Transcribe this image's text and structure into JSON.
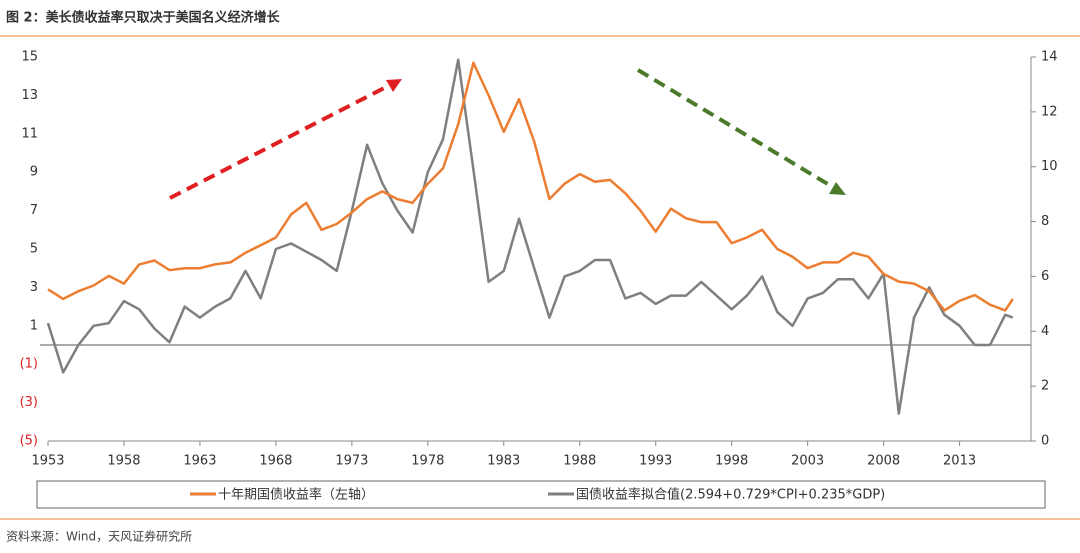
{
  "chart_data": {
    "type": "line",
    "title": "图 2：美长债收益率只取决于美国名义经济增长",
    "source": "资料来源：Wind，天风证券研究所",
    "x": [
      1953,
      1954,
      1955,
      1956,
      1957,
      1958,
      1959,
      1960,
      1961,
      1962,
      1963,
      1964,
      1965,
      1966,
      1967,
      1968,
      1969,
      1970,
      1971,
      1972,
      1973,
      1974,
      1975,
      1976,
      1977,
      1978,
      1979,
      1980,
      1981,
      1982,
      1983,
      1984,
      1985,
      1986,
      1987,
      1988,
      1989,
      1990,
      1991,
      1992,
      1993,
      1994,
      1995,
      1996,
      1997,
      1998,
      1999,
      2000,
      2001,
      2002,
      2003,
      2004,
      2005,
      2006,
      2007,
      2008,
      2009,
      2010,
      2011,
      2012,
      2013,
      2014,
      2015,
      2016,
      2016.5
    ],
    "xlim": [
      1953,
      2017.7
    ],
    "xticks": [
      1953,
      1958,
      1963,
      1968,
      1973,
      1978,
      1983,
      1988,
      1993,
      1998,
      2003,
      2008,
      2013
    ],
    "ylim": [
      -5,
      15
    ],
    "yticks": [
      15,
      13,
      11,
      9,
      7,
      5,
      3,
      1,
      {
        "value": -1,
        "label": "(1)"
      },
      {
        "value": -3,
        "label": "(3)"
      },
      {
        "value": -5,
        "label": "(5)"
      }
    ],
    "y2lim": [
      0,
      14
    ],
    "y2ticks": [
      14,
      12,
      10,
      8,
      6,
      4,
      2,
      0
    ],
    "legend": "bottom",
    "series": [
      {
        "name": "十年期国债收益率（左轴）",
        "color": "#ed7d31",
        "values": [
          2.9,
          2.4,
          2.8,
          3.1,
          3.6,
          3.2,
          4.2,
          4.4,
          3.9,
          4.0,
          4.0,
          4.2,
          4.3,
          4.8,
          5.2,
          5.6,
          6.8,
          7.4,
          6.0,
          6.3,
          6.9,
          7.6,
          8.0,
          7.6,
          7.4,
          8.4,
          9.2,
          11.5,
          14.7,
          13.0,
          11.1,
          12.8,
          10.6,
          7.6,
          8.4,
          8.9,
          8.5,
          8.6,
          7.9,
          7.0,
          5.9,
          7.1,
          6.6,
          6.4,
          6.4,
          5.3,
          5.6,
          6.0,
          5.0,
          4.6,
          4.0,
          4.3,
          4.3,
          4.8,
          4.6,
          3.7,
          3.3,
          3.2,
          2.8,
          1.8,
          2.3,
          2.6,
          2.1,
          1.8,
          2.4
        ]
      },
      {
        "name": "国债收益率拟合值(2.594+0.729*CPI+0.235*GDP)",
        "color": "#7f7f7f",
        "axis": "y2",
        "values": [
          4.3,
          2.5,
          3.5,
          4.2,
          4.3,
          5.1,
          4.8,
          4.1,
          3.6,
          4.9,
          4.5,
          4.9,
          5.2,
          6.2,
          5.2,
          7.0,
          7.2,
          6.9,
          6.6,
          6.2,
          8.4,
          10.8,
          9.4,
          8.4,
          7.6,
          9.8,
          11.0,
          13.9,
          9.9,
          5.8,
          6.2,
          8.1,
          6.3,
          4.5,
          6.0,
          6.2,
          6.6,
          6.6,
          5.2,
          5.4,
          5.0,
          5.3,
          5.3,
          5.8,
          5.3,
          4.8,
          5.3,
          6.0,
          4.7,
          4.2,
          5.2,
          5.4,
          5.9,
          5.9,
          5.2,
          6.1,
          1.0,
          4.5,
          5.6,
          4.6,
          4.2,
          3.5,
          3.5,
          4.6,
          4.5
        ]
      }
    ]
  }
}
